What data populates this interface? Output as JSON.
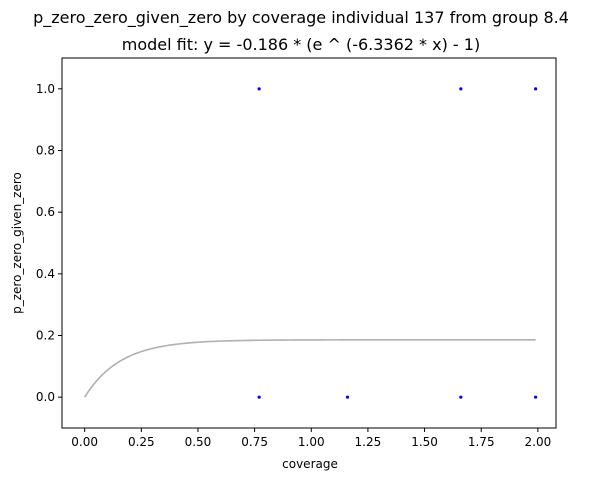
{
  "chart_data": {
    "type": "scatter",
    "title": "p_zero_zero_given_zero by coverage individual 137 from group 8.4",
    "subtitle": "model fit: y = -0.186 * (e ^ (-6.3362 * x) - 1)",
    "xlabel": "coverage",
    "ylabel": "p_zero_zero_given_zero",
    "xlim": [
      -0.1,
      2.08
    ],
    "ylim": [
      -0.1,
      1.1
    ],
    "xticks": [
      0.0,
      0.25,
      0.5,
      0.75,
      1.0,
      1.25,
      1.5,
      1.75,
      2.0
    ],
    "xtick_labels": [
      "0.00",
      "0.25",
      "0.50",
      "0.75",
      "1.00",
      "1.25",
      "1.50",
      "1.75",
      "2.00"
    ],
    "yticks": [
      0.0,
      0.2,
      0.4,
      0.6,
      0.8,
      1.0
    ],
    "ytick_labels": [
      "0.0",
      "0.2",
      "0.4",
      "0.6",
      "0.8",
      "1.0"
    ],
    "grid": false,
    "points": {
      "color": "#0000ff",
      "x": [
        0.77,
        1.66,
        1.99,
        0.77,
        1.16,
        1.66,
        1.99
      ],
      "y": [
        1.0,
        1.0,
        1.0,
        0.0,
        0.0,
        0.0,
        0.0
      ]
    },
    "fit": {
      "color": "#b0b0b0",
      "a": -0.186,
      "b": -6.3362,
      "x_range": [
        0.0,
        1.99
      ]
    }
  }
}
